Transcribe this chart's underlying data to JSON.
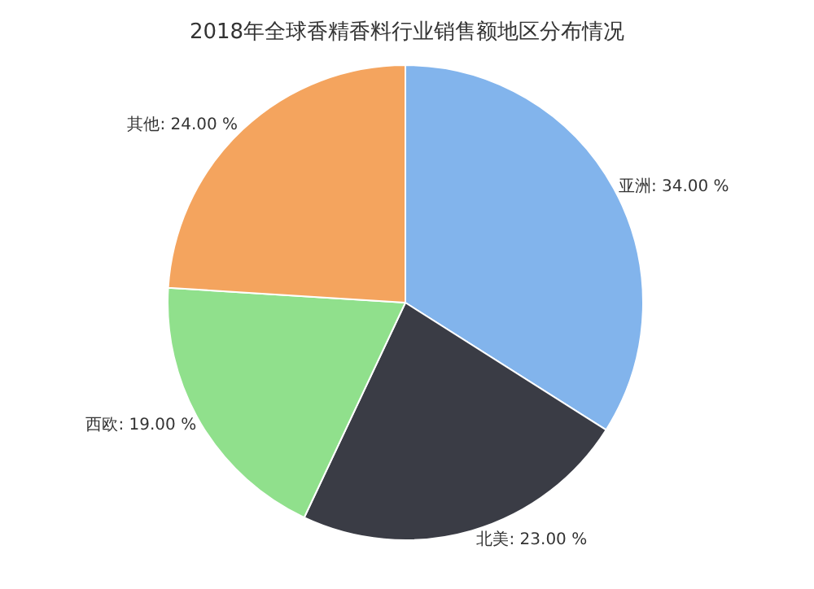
{
  "chart_data": {
    "type": "pie",
    "title": "2018年全球香精香料行业销售额地区分布情况",
    "categories": [
      "亚洲",
      "北美",
      "西欧",
      "其他"
    ],
    "values": [
      34,
      23,
      19,
      24
    ],
    "colors": [
      "#82b4ec",
      "#3a3c45",
      "#90e08c",
      "#f4a45e"
    ],
    "value_labels": [
      "34.00 %",
      "23.00 %",
      "19.00 %",
      "24.00 %"
    ],
    "legend": false
  }
}
